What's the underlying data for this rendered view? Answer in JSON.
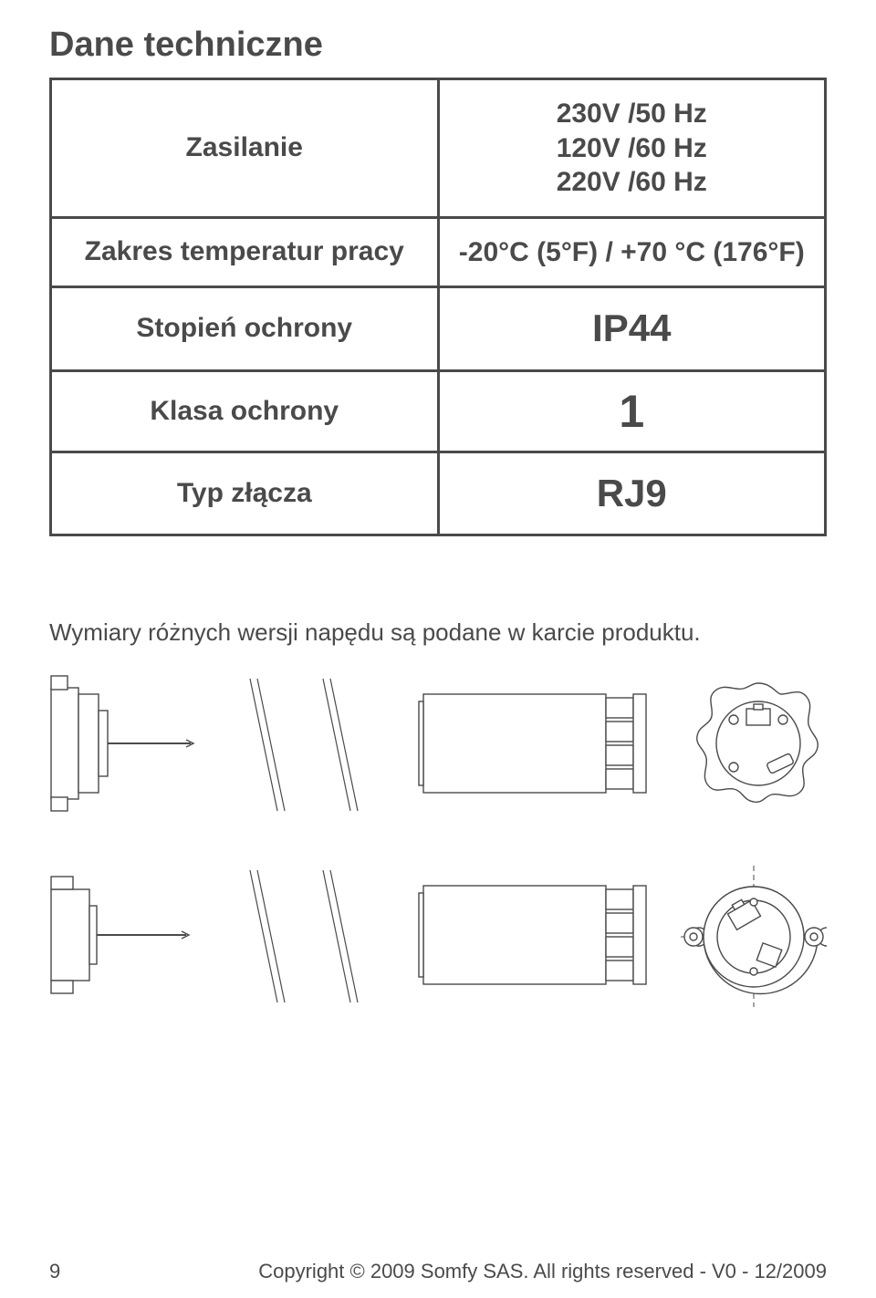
{
  "title": "Dane techniczne",
  "spec_table": {
    "rows": [
      {
        "label": "Zasilanie",
        "value_lines": [
          "230V /50 Hz",
          "120V /60 Hz",
          "220V /60 Hz"
        ],
        "value_class": ""
      },
      {
        "label": "Zakres temperatur pracy",
        "value_lines": [
          "-20°C (5°F) / +70 °C (176°F)"
        ],
        "value_class": ""
      },
      {
        "label": "Stopień ochrony",
        "value_lines": [
          "IP44"
        ],
        "value_class": "big"
      },
      {
        "label": "Klasa ochrony",
        "value_lines": [
          "1"
        ],
        "value_class": "huge"
      },
      {
        "label": "Typ złącza",
        "value_lines": [
          "RJ9"
        ],
        "value_class": "big"
      }
    ],
    "colors": {
      "border": "#4a4a4a",
      "text": "#4a4a4a"
    }
  },
  "caption": "Wymiary różnych wersji napędu są podane w karcie produktu.",
  "footer": {
    "page_number": "9",
    "copyright": "Copyright © 2009 Somfy SAS. All rights reserved - V0 - 12/2009"
  },
  "diagram_style": {
    "stroke": "#4a4a4a",
    "stroke_thin": 1.2,
    "fill": "#ffffff"
  }
}
